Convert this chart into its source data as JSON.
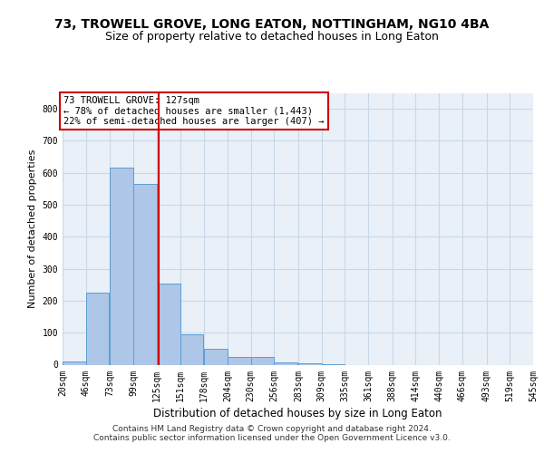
{
  "title": "73, TROWELL GROVE, LONG EATON, NOTTINGHAM, NG10 4BA",
  "subtitle": "Size of property relative to detached houses in Long Eaton",
  "xlabel": "Distribution of detached houses by size in Long Eaton",
  "ylabel": "Number of detached properties",
  "bin_edges": [
    20,
    46,
    73,
    99,
    125,
    151,
    178,
    204,
    230,
    256,
    283,
    309,
    335,
    361,
    388,
    414,
    440,
    466,
    493,
    519,
    545
  ],
  "bar_heights": [
    10,
    225,
    615,
    565,
    255,
    95,
    50,
    25,
    25,
    8,
    3,
    1,
    0,
    0,
    0,
    0,
    0,
    0,
    0,
    0
  ],
  "bar_color": "#aec6e8",
  "bar_edgecolor": "#5a9fd4",
  "property_size": 127,
  "vline_color": "#cc0000",
  "annotation_line1": "73 TROWELL GROVE: 127sqm",
  "annotation_line2": "← 78% of detached houses are smaller (1,443)",
  "annotation_line3": "22% of semi-detached houses are larger (407) →",
  "annotation_box_edgecolor": "#cc0000",
  "ylim": [
    0,
    850
  ],
  "yticks": [
    0,
    100,
    200,
    300,
    400,
    500,
    600,
    700,
    800
  ],
  "grid_color": "#c8d8e8",
  "background_color": "#eaf0f8",
  "footer_line1": "Contains HM Land Registry data © Crown copyright and database right 2024.",
  "footer_line2": "Contains public sector information licensed under the Open Government Licence v3.0.",
  "title_fontsize": 10,
  "subtitle_fontsize": 9,
  "annotation_fontsize": 7.5,
  "ylabel_fontsize": 8,
  "xlabel_fontsize": 8.5,
  "tick_label_fontsize": 7
}
